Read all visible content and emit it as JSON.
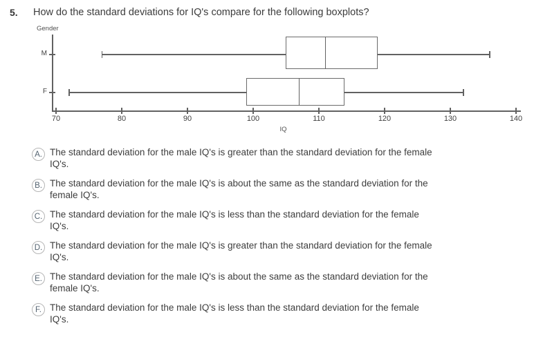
{
  "question": {
    "number": "5.",
    "text": "How do the standard deviations for IQ's compare for the following boxplots?"
  },
  "chart_data": {
    "type": "boxplot",
    "orientation": "horizontal",
    "ylabel": "Gender",
    "xlabel": "IQ",
    "xlim": [
      70,
      140
    ],
    "x_ticks": [
      70,
      80,
      90,
      100,
      110,
      120,
      130,
      140
    ],
    "grid": false,
    "series": [
      {
        "category": "M",
        "min": 77,
        "q1": 105,
        "median": 111,
        "q3": 119,
        "max": 136
      },
      {
        "category": "F",
        "min": 72,
        "q1": 99,
        "median": 107,
        "q3": 114,
        "max": 132
      }
    ]
  },
  "options": [
    {
      "letter": "A.",
      "lines": [
        "The standard deviation for the male IQ's is greater than the standard deviation for the female",
        "IQ's."
      ]
    },
    {
      "letter": "B.",
      "lines": [
        "The standard deviation for the male IQ's is about the same as the standard deviation for the",
        "female IQ's."
      ]
    },
    {
      "letter": "C.",
      "lines": [
        "The standard deviation for the male IQ's is less than the standard deviation for the female",
        "IQ's."
      ]
    },
    {
      "letter": "D.",
      "lines": [
        "The standard deviation for the male IQ's is greater than the standard deviation for the female",
        "IQ's."
      ]
    },
    {
      "letter": "E.",
      "lines": [
        "The standard deviation for the male IQ's is about the same as the standard deviation for the",
        "female IQ's."
      ]
    },
    {
      "letter": "F.",
      "lines": [
        "The standard deviation for the male IQ's is less than the standard deviation for the female",
        "IQ's."
      ]
    }
  ],
  "colors": {
    "background": "#ffffff",
    "text": "#3d3d3d",
    "chart_line": "#616161",
    "option_circle_border": "#b5b5b5",
    "option_letter": "#536270"
  }
}
